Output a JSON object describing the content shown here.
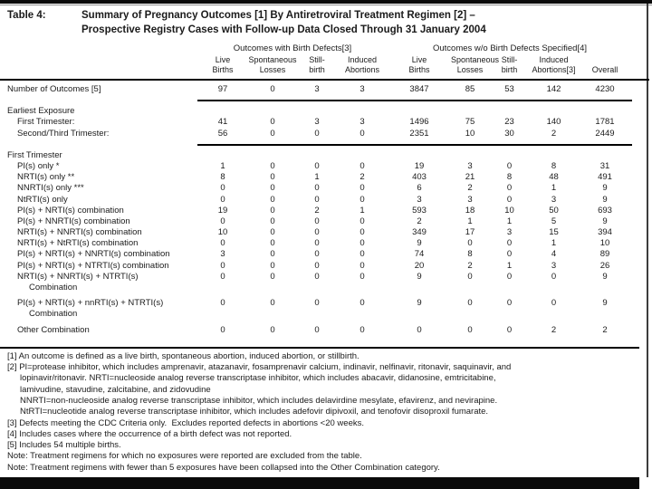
{
  "title": {
    "label": "Table 4:",
    "line1": "Summary of Pregnancy Outcomes [1] By Antiretroviral Treatment Regimen [2] –",
    "line2": "Prospective Registry Cases with Follow-up Data Closed Through 31 January 2004"
  },
  "table": {
    "group_headers": [
      "Outcomes with Birth Defects[3]",
      "Outcomes w/o Birth Defects Specified[4]"
    ],
    "col_headers": [
      [
        "Live",
        "Births"
      ],
      [
        "Spontaneous",
        "Losses"
      ],
      [
        "Still-",
        "birth"
      ],
      [
        "Induced",
        "Abortions"
      ],
      [
        "Live",
        "Births"
      ],
      [
        "Spontaneous",
        "Losses"
      ],
      [
        "Still-",
        "birth"
      ],
      [
        "Induced",
        "Abortions[3]"
      ],
      [
        "",
        "Overall"
      ]
    ],
    "lines": [
      {
        "type": "row",
        "label": "Number of Outcomes [5]",
        "indent": 0,
        "values": [
          "97",
          "0",
          "3",
          "3",
          "3847",
          "85",
          "53",
          "142",
          "4230"
        ]
      },
      {
        "type": "rule"
      },
      {
        "type": "row",
        "label": "Earliest Exposure",
        "indent": 0
      },
      {
        "type": "row",
        "label": "First Trimester:",
        "indent": 1,
        "values": [
          "41",
          "0",
          "3",
          "3",
          "1496",
          "75",
          "23",
          "140",
          "1781"
        ]
      },
      {
        "type": "row",
        "label": "Second/Third Trimester:",
        "indent": 1,
        "values": [
          "56",
          "0",
          "0",
          "0",
          "2351",
          "10",
          "30",
          "2",
          "2449"
        ]
      },
      {
        "type": "rule"
      },
      {
        "type": "row",
        "label": "First Trimester",
        "indent": 0
      },
      {
        "type": "row",
        "label": "PI(s) only *",
        "indent": 1,
        "values": [
          "1",
          "0",
          "0",
          "0",
          "19",
          "3",
          "0",
          "8",
          "31"
        ]
      },
      {
        "type": "row",
        "label": "NRTI(s) only **",
        "indent": 1,
        "values": [
          "8",
          "0",
          "1",
          "2",
          "403",
          "21",
          "8",
          "48",
          "491"
        ]
      },
      {
        "type": "row",
        "label": "NNRTI(s) only ***",
        "indent": 1,
        "values": [
          "0",
          "0",
          "0",
          "0",
          "6",
          "2",
          "0",
          "1",
          "9"
        ]
      },
      {
        "type": "row",
        "label": "NtRTI(s) only",
        "indent": 1,
        "values": [
          "0",
          "0",
          "0",
          "0",
          "3",
          "3",
          "0",
          "3",
          "9"
        ]
      },
      {
        "type": "row",
        "label": "PI(s) + NRTI(s) combination",
        "indent": 1,
        "values": [
          "19",
          "0",
          "2",
          "1",
          "593",
          "18",
          "10",
          "50",
          "693"
        ]
      },
      {
        "type": "row",
        "label": "PI(s) + NNRTI(s) combination",
        "indent": 1,
        "values": [
          "0",
          "0",
          "0",
          "0",
          "2",
          "1",
          "1",
          "5",
          "9"
        ]
      },
      {
        "type": "row",
        "label": "NRTI(s) + NNRTI(s) combination",
        "indent": 1,
        "values": [
          "10",
          "0",
          "0",
          "0",
          "349",
          "17",
          "3",
          "15",
          "394"
        ]
      },
      {
        "type": "row",
        "label": "NRTI(s) + NtRTI(s) combination",
        "indent": 1,
        "values": [
          "0",
          "0",
          "0",
          "0",
          "9",
          "0",
          "0",
          "1",
          "10"
        ]
      },
      {
        "type": "row",
        "label": "PI(s) + NRTI(s) + NNRTI(s) combination",
        "indent": 1,
        "values": [
          "3",
          "0",
          "0",
          "0",
          "74",
          "8",
          "0",
          "4",
          "89"
        ]
      },
      {
        "type": "row",
        "label": "PI(s) + NRTI(s) + NTRTI(s) combination",
        "indent": 1,
        "values": [
          "0",
          "0",
          "0",
          "0",
          "20",
          "2",
          "1",
          "3",
          "26"
        ]
      },
      {
        "type": "row",
        "label": "NRTI(s) + NNRTI(s) + NTRTI(s)",
        "indent": 1,
        "values": [
          "0",
          "0",
          "0",
          "0",
          "9",
          "0",
          "0",
          "0",
          "9"
        ]
      },
      {
        "type": "row",
        "label": "Combination",
        "indent": 2
      },
      {
        "type": "gap"
      },
      {
        "type": "row",
        "label": "PI(s) + NRTI(s) + nnRTI(s) + NTRTI(s)",
        "indent": 1,
        "values": [
          "0",
          "0",
          "0",
          "0",
          "9",
          "0",
          "0",
          "0",
          "9"
        ]
      },
      {
        "type": "row",
        "label": "Combination",
        "indent": 2
      },
      {
        "type": "gap"
      },
      {
        "type": "row",
        "label": "Other Combination",
        "indent": 1,
        "values": [
          "0",
          "0",
          "0",
          "0",
          "0",
          "0",
          "0",
          "2",
          "2"
        ]
      }
    ]
  },
  "footnotes": [
    {
      "text": "[1] An outcome is defined as a live birth, spontaneous abortion, induced abortion, or stillbirth.",
      "indent": 0
    },
    {
      "text": "[2] PI=protease inhibitor, which includes amprenavir, atazanavir, fosamprenavir calcium, indinavir, nelfinavir, ritonavir, saquinavir, and",
      "indent": 0
    },
    {
      "text": "lopinavir/ritonavir. NRTI=nucleoside analog reverse transcriptase inhibitor, which includes abacavir, didanosine, emtricitabine,",
      "indent": 1
    },
    {
      "text": "lamivudine, stavudine, zalcitabine, and zidovudine",
      "indent": 1
    },
    {
      "text": "NNRTI=non-nucleoside analog reverse transcriptase inhibitor, which includes delavirdine mesylate, efavirenz, and nevirapine.",
      "indent": 1
    },
    {
      "text": "NtRTI=nucleotide analog reverse transcriptase inhibitor, which includes adefovir dipivoxil, and tenofovir disoproxil fumarate.",
      "indent": 1
    },
    {
      "text": "[3] Defects meeting the CDC Criteria only.  Excludes reported defects in abortions <20 weeks.",
      "indent": 0
    },
    {
      "text": "[4] Includes cases where the occurrence of a birth defect was not reported.",
      "indent": 0
    },
    {
      "text": "[5] Includes 54 multiple births.",
      "indent": 0
    },
    {
      "text": "Note: Treatment regimens for which no exposures were reported are excluded from the table.",
      "indent": 0
    },
    {
      "text": "Note: Treatment regimens with fewer than 5 exposures have been collapsed into the Other Combination category.",
      "indent": 0
    }
  ],
  "colors": {
    "text": "#1b1b1b",
    "rule": "#000000",
    "border_bar": "#0a0a0a"
  }
}
